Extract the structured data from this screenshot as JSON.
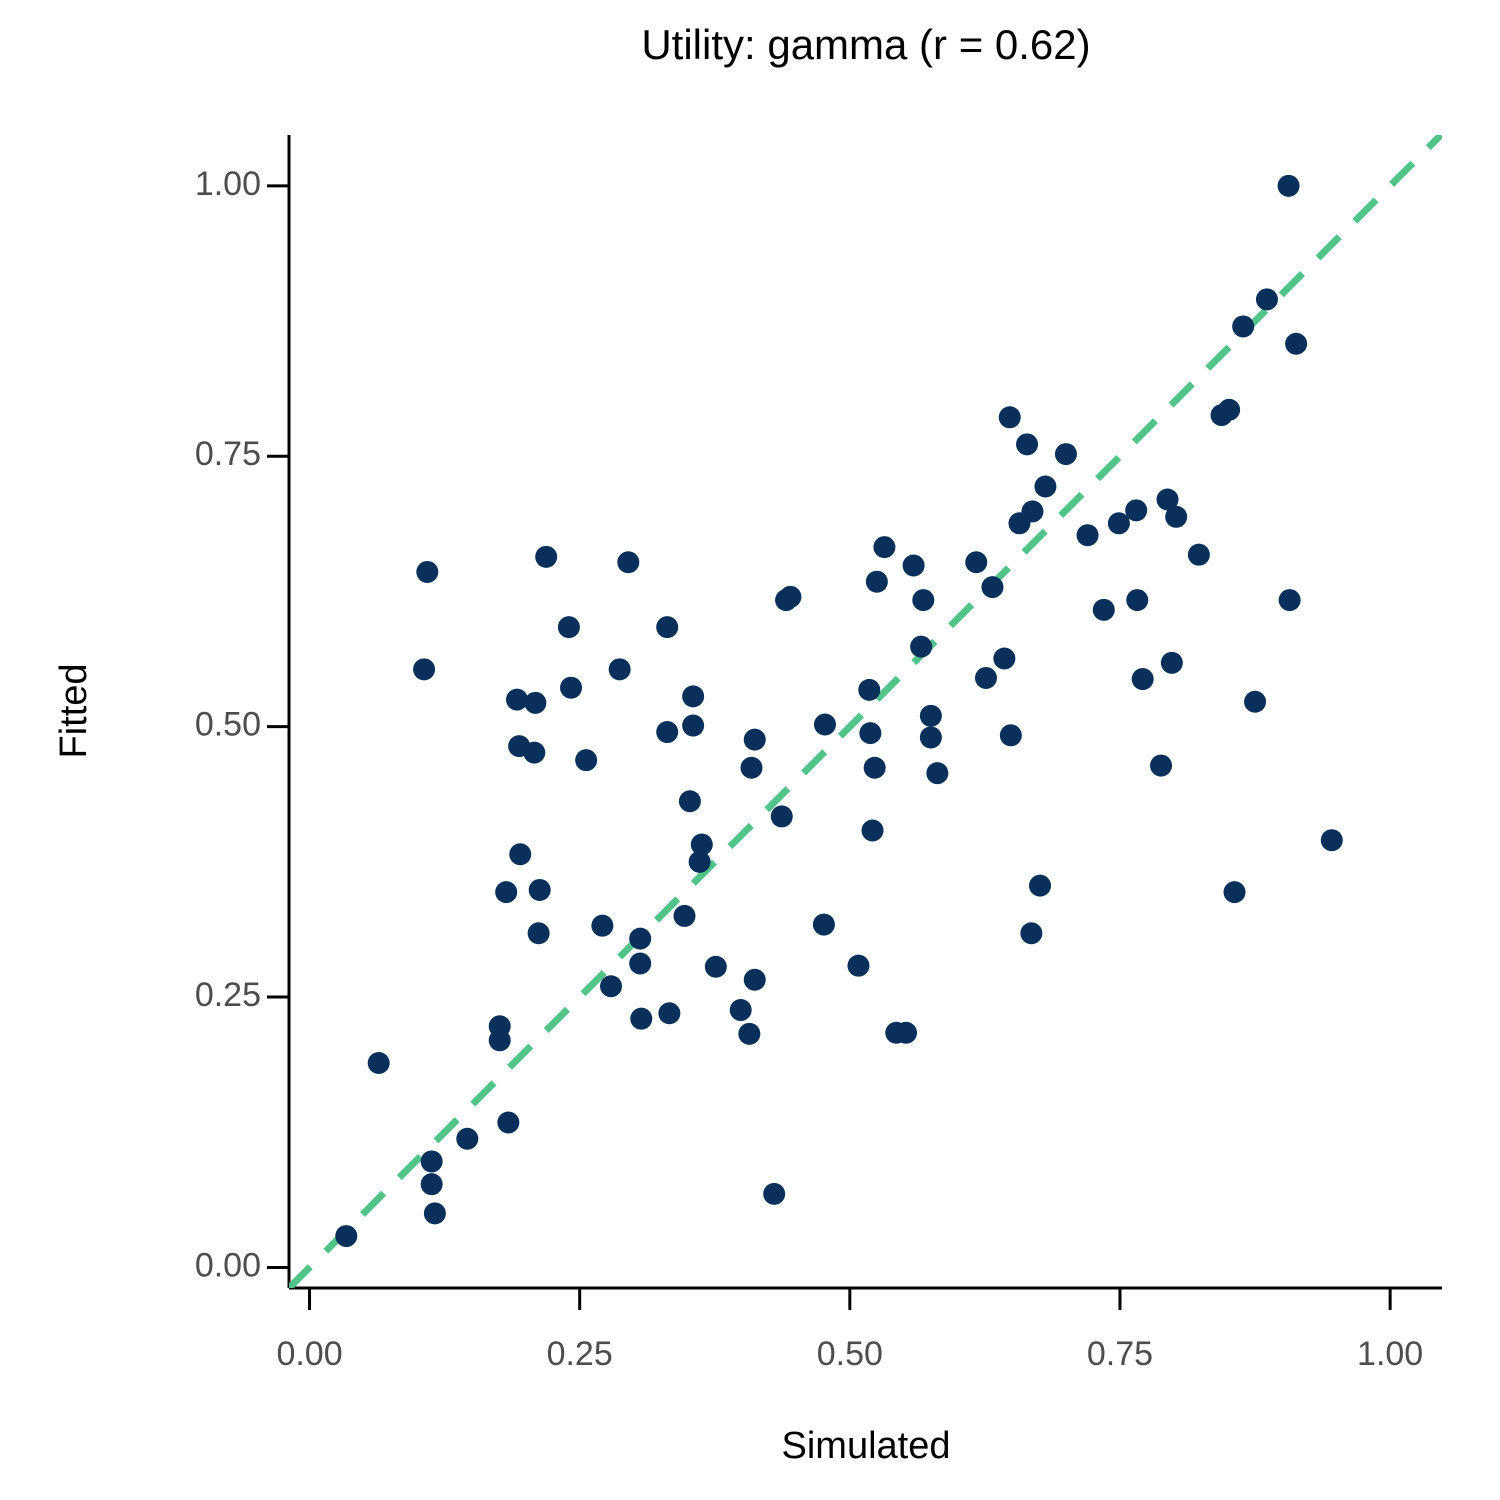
{
  "chart_data": {
    "type": "scatter",
    "title": "Utility: gamma (r = 0.62)",
    "x_label": "Simulated",
    "y_label": "Fitted",
    "color": "#08305a",
    "reference_color": "#52c38a",
    "xlim": [
      -0.019,
      1.048
    ],
    "ylim": [
      -0.019,
      1.047
    ],
    "xticks": [
      {
        "value": 0,
        "label": "0.00"
      },
      {
        "value": 0.25,
        "label": "0.25"
      },
      {
        "value": 0.5,
        "label": "0.50"
      },
      {
        "value": 0.75,
        "label": "0.75"
      },
      {
        "value": 1,
        "label": "1.00"
      }
    ],
    "yticks": [
      {
        "value": 0,
        "label": "0.00"
      },
      {
        "value": 0.25,
        "label": "0.25"
      },
      {
        "value": 0.5,
        "label": "0.50"
      },
      {
        "value": 0.75,
        "label": "0.75"
      },
      {
        "value": 1,
        "label": "1.00"
      }
    ],
    "x": [
      0.034,
      0.064,
      0.109,
      0.106,
      0.113,
      0.113,
      0.116,
      0.146,
      0.176,
      0.176,
      0.184,
      0.182,
      0.192,
      0.194,
      0.195,
      0.209,
      0.208,
      0.213,
      0.212,
      0.219,
      0.24,
      0.242,
      0.256,
      0.271,
      0.279,
      0.287,
      0.295,
      0.306,
      0.306,
      0.307,
      0.331,
      0.331,
      0.333,
      0.347,
      0.352,
      0.355,
      0.355,
      0.363,
      0.361,
      0.376,
      0.399,
      0.407,
      0.409,
      0.412,
      0.412,
      0.43,
      0.437,
      0.441,
      0.445,
      0.476,
      0.477,
      0.508,
      0.518,
      0.519,
      0.521,
      0.523,
      0.525,
      0.532,
      0.543,
      0.552,
      0.559,
      0.568,
      0.566,
      0.575,
      0.575,
      0.581,
      0.617,
      0.626,
      0.632,
      0.643,
      0.648,
      0.649,
      0.657,
      0.664,
      0.668,
      0.669,
      0.676,
      0.681,
      0.7,
      0.72,
      0.735,
      0.749,
      0.765,
      0.766,
      0.771,
      0.788,
      0.794,
      0.798,
      0.802,
      0.823,
      0.844,
      0.851,
      0.856,
      0.864,
      0.875,
      0.886,
      0.906,
      0.907,
      0.913,
      0.946
    ],
    "y": [
      0.029,
      0.189,
      0.643,
      0.553,
      0.098,
      0.077,
      0.05,
      0.119,
      0.223,
      0.21,
      0.134,
      0.347,
      0.525,
      0.482,
      0.382,
      0.522,
      0.476,
      0.349,
      0.309,
      0.657,
      0.592,
      0.536,
      0.469,
      0.316,
      0.26,
      0.553,
      0.652,
      0.304,
      0.281,
      0.23,
      0.592,
      0.495,
      0.235,
      0.325,
      0.431,
      0.528,
      0.501,
      0.391,
      0.375,
      0.278,
      0.238,
      0.216,
      0.462,
      0.488,
      0.266,
      0.068,
      0.417,
      0.617,
      0.62,
      0.317,
      0.502,
      0.279,
      0.534,
      0.494,
      0.404,
      0.462,
      0.634,
      0.666,
      0.217,
      0.217,
      0.649,
      0.617,
      0.574,
      0.51,
      0.49,
      0.457,
      0.652,
      0.545,
      0.629,
      0.563,
      0.786,
      0.492,
      0.688,
      0.761,
      0.309,
      0.699,
      0.353,
      0.722,
      0.752,
      0.677,
      0.608,
      0.688,
      0.7,
      0.617,
      0.544,
      0.464,
      0.71,
      0.559,
      0.694,
      0.659,
      0.788,
      0.793,
      0.347,
      0.87,
      0.523,
      0.895,
      1.0,
      0.617,
      0.854,
      0.395
    ]
  }
}
